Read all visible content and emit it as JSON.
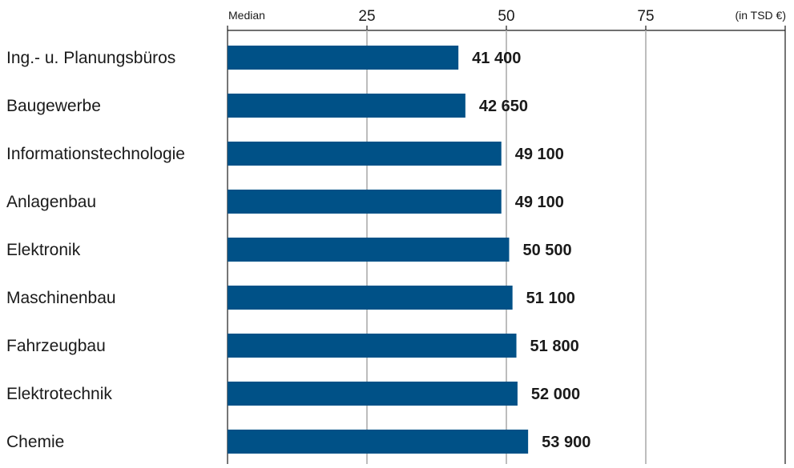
{
  "chart_data": {
    "type": "bar",
    "orientation": "horizontal",
    "categories": [
      "Ing.- u. Planungsbüros",
      "Baugewerbe",
      "Informationstechnologie",
      "Anlagenbau",
      "Elektronik",
      "Maschinenbau",
      "Fahrzeugbau",
      "Elektrotechnik",
      "Chemie"
    ],
    "values": [
      41400,
      42650,
      49100,
      49100,
      50500,
      51100,
      51800,
      52000,
      53900
    ],
    "value_labels": [
      "41 400",
      "42 650",
      "49 100",
      "49 100",
      "50 500",
      "51 100",
      "51 800",
      "52 000",
      "53 900"
    ],
    "axis_label": "Median",
    "unit_label": "(in TSD €)",
    "x_ticks": [
      {
        "value": 25000,
        "label": "25"
      },
      {
        "value": 50000,
        "label": "50"
      },
      {
        "value": 75000,
        "label": "75"
      }
    ],
    "xlim": [
      0,
      100000
    ],
    "grid": true,
    "colors": {
      "bar": "#005187",
      "grid": "#bdbdbd",
      "axis": "#1a1a1a",
      "text": "#1a1a1a"
    }
  }
}
